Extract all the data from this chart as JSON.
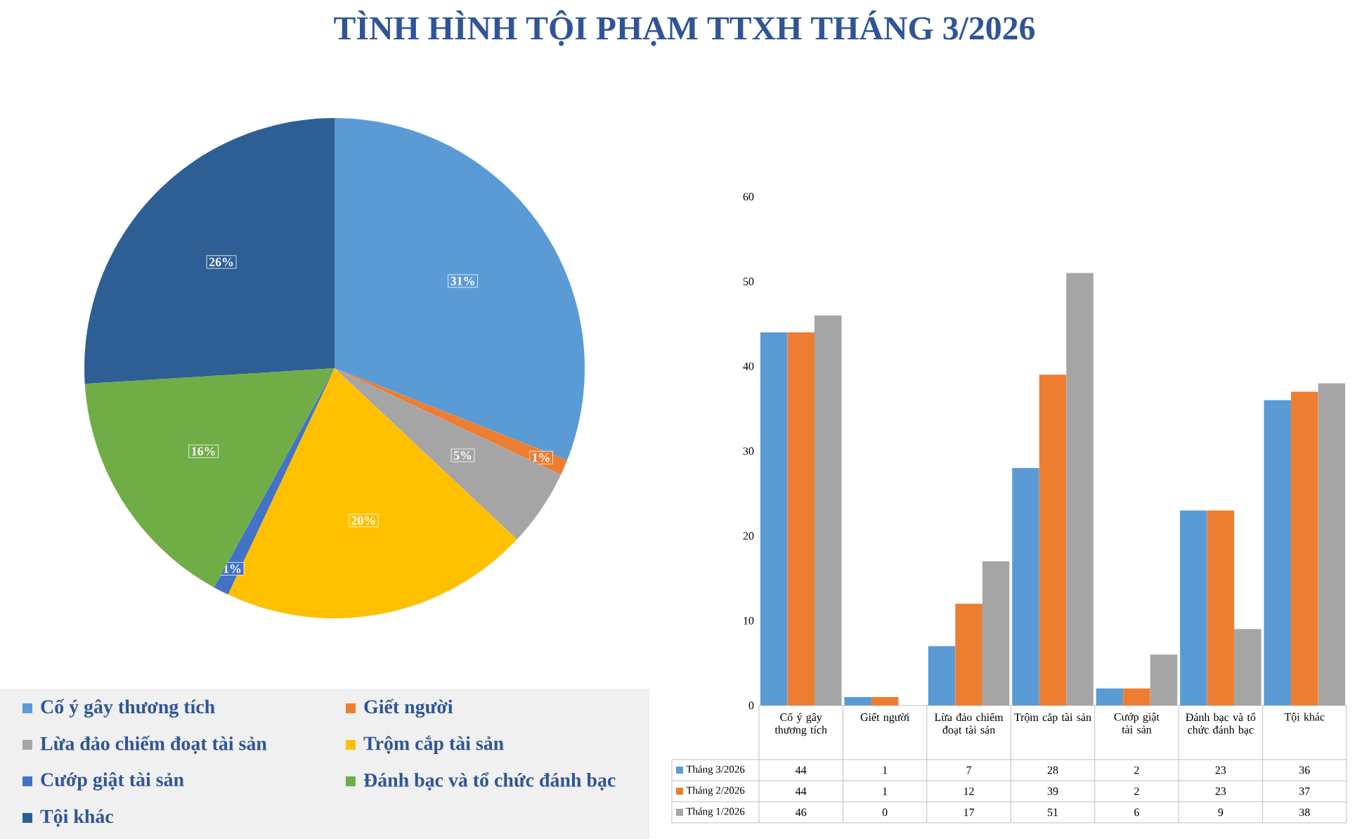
{
  "chart_data": [
    {
      "type": "pie",
      "title": "TÌNH HÌNH TỘI PHẠM TTXH THÁNG 3/2026",
      "categories": [
        "Cố ý gây thương tích",
        "Giết người",
        "Lừa đảo chiếm đoạt tài sản",
        "Trộm cắp tài sản",
        "Cướp giật tài sản",
        "Đánh bạc và tổ chức đánh bạc",
        "Tội khác"
      ],
      "values": [
        31,
        1,
        5,
        20,
        1,
        16,
        26
      ],
      "value_labels": [
        "31%",
        "1%",
        "5%",
        "20%",
        "1%",
        "16%",
        "26%"
      ],
      "colors": [
        "#5b9bd5",
        "#ed7d31",
        "#a5a5a5",
        "#ffc000",
        "#4472c4",
        "#70ad47",
        "#2e5f94"
      ],
      "legend": "bottom"
    },
    {
      "type": "bar",
      "categories": [
        "Cố ý gây thương tích",
        "Giết người",
        "Lừa đảo chiếm đoạt tài sản",
        "Trộm cắp tài sản",
        "Cướp giật tài sản",
        "Đánh bạc và tổ chức đánh bạc",
        "Tội khác"
      ],
      "series": [
        {
          "name": "Tháng 3/2026",
          "color": "#5b9bd5",
          "values": [
            44,
            1,
            7,
            28,
            2,
            23,
            36
          ]
        },
        {
          "name": "Tháng 2/2026",
          "color": "#ed7d31",
          "values": [
            44,
            1,
            12,
            39,
            2,
            23,
            37
          ]
        },
        {
          "name": "Tháng 1/2026",
          "color": "#a5a5a5",
          "values": [
            46,
            0,
            17,
            51,
            6,
            9,
            38
          ]
        }
      ],
      "ylim": [
        0,
        60
      ],
      "yticks": [
        0,
        10,
        20,
        30,
        40,
        50,
        60
      ],
      "data_labels": true,
      "legend": "bottom"
    }
  ]
}
